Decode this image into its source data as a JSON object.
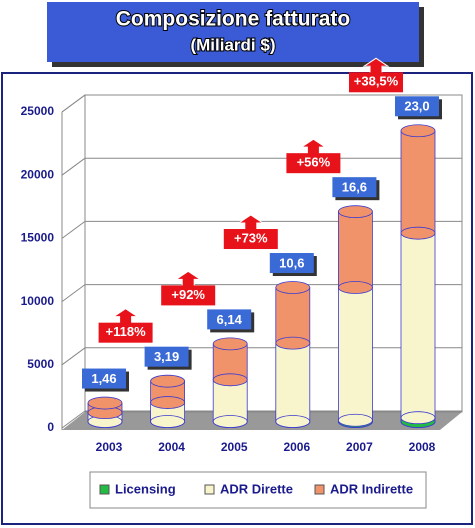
{
  "chart_data": {
    "type": "stacked-cylinder",
    "title": "Composizione fatturato",
    "subtitle": "(Miliardi $)",
    "categories": [
      "2003",
      "2004",
      "2005",
      "2006",
      "2007",
      "2008"
    ],
    "series": [
      {
        "name": "Licensing",
        "color": "#22bb44",
        "values": [
          0,
          0,
          0,
          0,
          100,
          300
        ]
      },
      {
        "name": "ADR Dirette",
        "color": "#f8f4cc",
        "values": [
          700,
          1500,
          3300,
          6200,
          10500,
          14600
        ]
      },
      {
        "name": "ADR Indirette",
        "color": "#f0936a",
        "values": [
          760,
          1690,
          2840,
          4400,
          6000,
          8100
        ]
      }
    ],
    "totals": {
      "values": [
        1460,
        3190,
        6140,
        10600,
        16600,
        23000
      ],
      "value_labels": [
        "1,46",
        "3,19",
        "6,14",
        "10,6",
        "16,6",
        "23,0"
      ]
    },
    "growth": {
      "values": [
        118,
        92,
        73,
        56,
        38.5
      ],
      "value_labels": [
        "+118%",
        "+92%",
        "+73%",
        "+56%",
        "+38,5%"
      ]
    },
    "ylim": [
      0,
      25000
    ],
    "yticks": [
      0,
      5000,
      10000,
      15000,
      20000,
      25000
    ],
    "grid": true,
    "legend": "bottom"
  }
}
